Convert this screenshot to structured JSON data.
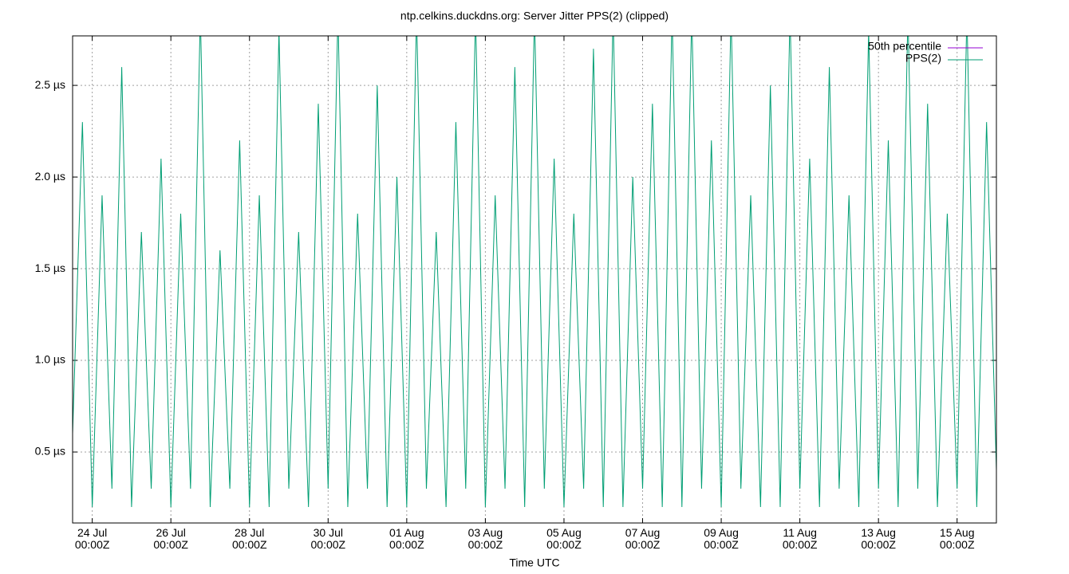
{
  "chart_data": {
    "type": "line",
    "title": "ntp.celkins.duckdns.org: Server Jitter PPS(2) (clipped)",
    "x_label": "Time UTC",
    "legend": "top-right",
    "grid": true,
    "xlim": [
      "07-23T12:00",
      "08-16T00:00"
    ],
    "xticks": [
      {
        "value": "07-24T00:00",
        "label": "24 Jul\n00:00Z"
      },
      {
        "value": "07-26T00:00",
        "label": "26 Jul\n00:00Z"
      },
      {
        "value": "07-28T00:00",
        "label": "28 Jul\n00:00Z"
      },
      {
        "value": "07-30T00:00",
        "label": "30 Jul\n00:00Z"
      },
      {
        "value": "08-01T00:00",
        "label": "01 Aug\n00:00Z"
      },
      {
        "value": "08-03T00:00",
        "label": "03 Aug\n00:00Z"
      },
      {
        "value": "08-05T00:00",
        "label": "05 Aug\n00:00Z"
      },
      {
        "value": "08-07T00:00",
        "label": "07 Aug\n00:00Z"
      },
      {
        "value": "08-09T00:00",
        "label": "09 Aug\n00:00Z"
      },
      {
        "value": "08-11T00:00",
        "label": "11 Aug\n00:00Z"
      },
      {
        "value": "08-13T00:00",
        "label": "13 Aug\n00:00Z"
      },
      {
        "value": "08-15T00:00",
        "label": "15 Aug\n00:00Z"
      }
    ],
    "ylim": [
      0.113,
      2.77
    ],
    "yticks": [
      {
        "value": 0.5,
        "label": "0.5 µs"
      },
      {
        "value": 1.0,
        "label": "1.0 µs"
      },
      {
        "value": 1.5,
        "label": "1.5 µs"
      },
      {
        "value": 2.0,
        "label": "2.0 µs"
      },
      {
        "value": 2.5,
        "label": "2.5 µs"
      }
    ],
    "x": [
      "07-23T12:00",
      "07-23T18:00",
      "07-24T00:00",
      "07-24T06:00",
      "07-24T12:00",
      "07-24T18:00",
      "07-25T00:00",
      "07-25T06:00",
      "07-25T12:00",
      "07-25T18:00",
      "07-26T00:00",
      "07-26T06:00",
      "07-26T12:00",
      "07-26T18:00",
      "07-27T00:00",
      "07-27T06:00",
      "07-27T12:00",
      "07-27T18:00",
      "07-28T00:00",
      "07-28T06:00",
      "07-28T12:00",
      "07-28T18:00",
      "07-29T00:00",
      "07-29T06:00",
      "07-29T12:00",
      "07-29T18:00",
      "07-30T00:00",
      "07-30T06:00",
      "07-30T12:00",
      "07-30T18:00",
      "07-31T00:00",
      "07-31T06:00",
      "07-31T12:00",
      "07-31T18:00",
      "08-01T00:00",
      "08-01T06:00",
      "08-01T12:00",
      "08-01T18:00",
      "08-02T00:00",
      "08-02T06:00",
      "08-02T12:00",
      "08-02T18:00",
      "08-03T00:00",
      "08-03T06:00",
      "08-03T12:00",
      "08-03T18:00",
      "08-04T00:00",
      "08-04T06:00",
      "08-04T12:00",
      "08-04T18:00",
      "08-05T00:00",
      "08-05T06:00",
      "08-05T12:00",
      "08-05T18:00",
      "08-06T00:00",
      "08-06T06:00",
      "08-06T12:00",
      "08-06T18:00",
      "08-07T00:00",
      "08-07T06:00",
      "08-07T12:00",
      "08-07T18:00",
      "08-08T00:00",
      "08-08T06:00",
      "08-08T12:00",
      "08-08T18:00",
      "08-09T00:00",
      "08-09T06:00",
      "08-09T12:00",
      "08-09T18:00",
      "08-10T00:00",
      "08-10T06:00",
      "08-10T12:00",
      "08-10T18:00",
      "08-11T00:00",
      "08-11T06:00",
      "08-11T12:00",
      "08-11T18:00",
      "08-12T00:00",
      "08-12T06:00",
      "08-12T12:00",
      "08-12T18:00",
      "08-13T00:00",
      "08-13T06:00",
      "08-13T12:00",
      "08-13T18:00",
      "08-14T00:00",
      "08-14T06:00",
      "08-14T12:00",
      "08-14T18:00",
      "08-15T00:00",
      "08-15T06:00",
      "08-15T12:00",
      "08-15T18:00",
      "08-16T00:00"
    ],
    "series": [
      {
        "name": "50th percentile",
        "color": "#9400d3"
      },
      {
        "name": "PPS(2)",
        "color": "#009e73",
        "values": [
          0.6,
          2.3,
          0.2,
          1.9,
          0.3,
          2.6,
          0.2,
          1.7,
          0.3,
          2.1,
          0.2,
          1.8,
          0.3,
          2.9,
          0.2,
          1.6,
          0.3,
          2.2,
          0.2,
          1.9,
          0.2,
          2.8,
          0.3,
          1.7,
          0.2,
          2.4,
          0.3,
          2.9,
          0.2,
          1.8,
          0.3,
          2.5,
          0.2,
          2.0,
          0.2,
          2.9,
          0.3,
          1.7,
          0.2,
          2.3,
          0.3,
          2.9,
          0.2,
          1.9,
          0.3,
          2.6,
          0.2,
          2.9,
          0.3,
          2.1,
          0.2,
          1.8,
          0.3,
          2.7,
          0.2,
          2.9,
          0.2,
          2.0,
          0.3,
          2.4,
          0.2,
          2.9,
          0.2,
          2.9,
          0.3,
          2.2,
          0.2,
          2.9,
          0.3,
          1.9,
          0.2,
          2.5,
          0.2,
          2.9,
          0.3,
          2.1,
          0.2,
          2.6,
          0.3,
          1.9,
          0.2,
          2.8,
          0.3,
          2.2,
          0.2,
          2.9,
          0.3,
          2.4,
          0.2,
          1.8,
          0.3,
          2.9,
          0.2,
          2.3,
          0.4
        ]
      }
    ]
  }
}
